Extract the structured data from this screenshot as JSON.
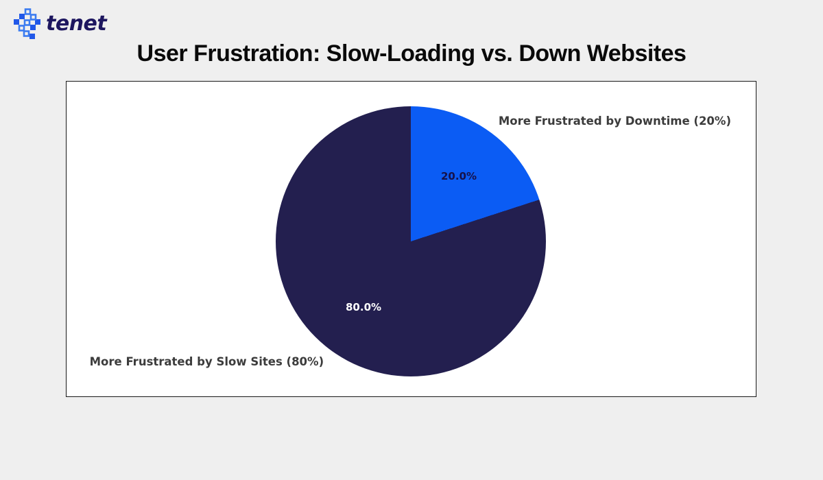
{
  "page": {
    "background_color": "#efefef"
  },
  "logo": {
    "text": "tenet",
    "text_color": "#1d165f",
    "icon": "pixel-hash-icon",
    "icon_colors": {
      "solid": "#2158e8",
      "light": "#3b7bf0"
    }
  },
  "title": {
    "text": "User Frustration: Slow-Loading vs. Down Websites",
    "color": "#0a0a0a"
  },
  "chart_data": {
    "type": "pie",
    "title": "User Frustration: Slow-Loading vs. Down Websites",
    "categories": [
      "More Frustrated by Downtime (20%)",
      "More Frustrated by Slow Sites (80%)"
    ],
    "values": [
      20,
      80
    ],
    "slices": [
      {
        "label": "More Frustrated by Downtime (20%)",
        "value": 20,
        "pct_label": "20.0%",
        "color": "#0b5cf4",
        "pct_label_color": "#16124a"
      },
      {
        "label": "More Frustrated by Slow Sites (80%)",
        "value": 80,
        "pct_label": "80.0%",
        "color": "#231f4f",
        "pct_label_color": "#ffffff"
      }
    ],
    "start_angle_deg": 90,
    "direction": "clockwise",
    "pct_distance": 0.6,
    "label_distance": 1.1,
    "label_color": "#3c3c3c",
    "legend_position": "none",
    "plot_background": "#ffffff",
    "plot_border_color": "#181818"
  }
}
